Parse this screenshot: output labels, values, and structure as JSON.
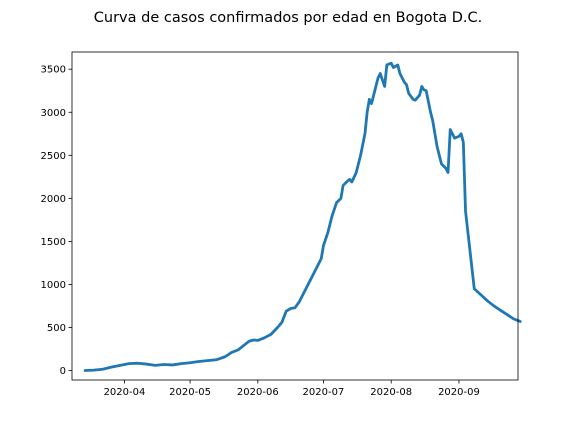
{
  "chart_data": {
    "type": "line",
    "title": "Curva de casos confirmados por edad en Bogota D.C.",
    "xlabel": "",
    "ylabel": "",
    "grid": false,
    "legend": "none",
    "x_axis": {
      "kind": "date",
      "range": [
        "2020-03-08",
        "2020-09-28"
      ],
      "ticks": [
        {
          "date": "2020-04-01",
          "label": "2020-04"
        },
        {
          "date": "2020-05-01",
          "label": "2020-05"
        },
        {
          "date": "2020-06-01",
          "label": "2020-06"
        },
        {
          "date": "2020-07-01",
          "label": "2020-07"
        },
        {
          "date": "2020-08-01",
          "label": "2020-08"
        },
        {
          "date": "2020-09-01",
          "label": "2020-09"
        }
      ]
    },
    "y_axis": {
      "range": [
        -110,
        3700
      ],
      "ticks": [
        0,
        500,
        1000,
        1500,
        2000,
        2500,
        3000,
        3500
      ]
    },
    "series": [
      {
        "color": "#1f77b4",
        "points": [
          [
            "2020-03-14",
            0
          ],
          [
            "2020-03-18",
            5
          ],
          [
            "2020-03-22",
            15
          ],
          [
            "2020-03-26",
            40
          ],
          [
            "2020-03-30",
            60
          ],
          [
            "2020-04-03",
            80
          ],
          [
            "2020-04-07",
            85
          ],
          [
            "2020-04-11",
            75
          ],
          [
            "2020-04-15",
            60
          ],
          [
            "2020-04-19",
            70
          ],
          [
            "2020-04-23",
            65
          ],
          [
            "2020-04-27",
            80
          ],
          [
            "2020-05-01",
            90
          ],
          [
            "2020-05-05",
            105
          ],
          [
            "2020-05-09",
            115
          ],
          [
            "2020-05-13",
            125
          ],
          [
            "2020-05-17",
            160
          ],
          [
            "2020-05-20",
            210
          ],
          [
            "2020-05-23",
            240
          ],
          [
            "2020-05-26",
            300
          ],
          [
            "2020-05-28",
            340
          ],
          [
            "2020-05-30",
            355
          ],
          [
            "2020-06-01",
            350
          ],
          [
            "2020-06-04",
            380
          ],
          [
            "2020-06-07",
            420
          ],
          [
            "2020-06-10",
            500
          ],
          [
            "2020-06-12",
            560
          ],
          [
            "2020-06-14",
            690
          ],
          [
            "2020-06-16",
            720
          ],
          [
            "2020-06-18",
            730
          ],
          [
            "2020-06-20",
            800
          ],
          [
            "2020-06-22",
            900
          ],
          [
            "2020-06-24",
            1000
          ],
          [
            "2020-06-26",
            1100
          ],
          [
            "2020-06-28",
            1200
          ],
          [
            "2020-06-30",
            1300
          ],
          [
            "2020-07-01",
            1450
          ],
          [
            "2020-07-03",
            1600
          ],
          [
            "2020-07-05",
            1800
          ],
          [
            "2020-07-07",
            1950
          ],
          [
            "2020-07-09",
            2000
          ],
          [
            "2020-07-10",
            2150
          ],
          [
            "2020-07-12",
            2200
          ],
          [
            "2020-07-13",
            2220
          ],
          [
            "2020-07-14",
            2190
          ],
          [
            "2020-07-16",
            2300
          ],
          [
            "2020-07-18",
            2500
          ],
          [
            "2020-07-20",
            2750
          ],
          [
            "2020-07-21",
            3000
          ],
          [
            "2020-07-22",
            3150
          ],
          [
            "2020-07-23",
            3100
          ],
          [
            "2020-07-25",
            3300
          ],
          [
            "2020-07-26",
            3400
          ],
          [
            "2020-07-27",
            3450
          ],
          [
            "2020-07-29",
            3300
          ],
          [
            "2020-07-30",
            3550
          ],
          [
            "2020-08-01",
            3570
          ],
          [
            "2020-08-02",
            3520
          ],
          [
            "2020-08-04",
            3550
          ],
          [
            "2020-08-05",
            3450
          ],
          [
            "2020-08-07",
            3350
          ],
          [
            "2020-08-08",
            3320
          ],
          [
            "2020-08-09",
            3220
          ],
          [
            "2020-08-11",
            3150
          ],
          [
            "2020-08-12",
            3140
          ],
          [
            "2020-08-14",
            3200
          ],
          [
            "2020-08-15",
            3300
          ],
          [
            "2020-08-16",
            3260
          ],
          [
            "2020-08-17",
            3250
          ],
          [
            "2020-08-19",
            3000
          ],
          [
            "2020-08-20",
            2900
          ],
          [
            "2020-08-22",
            2600
          ],
          [
            "2020-08-24",
            2400
          ],
          [
            "2020-08-26",
            2350
          ],
          [
            "2020-08-27",
            2300
          ],
          [
            "2020-08-28",
            2800
          ],
          [
            "2020-08-30",
            2700
          ],
          [
            "2020-09-01",
            2720
          ],
          [
            "2020-09-02",
            2750
          ],
          [
            "2020-09-03",
            2650
          ],
          [
            "2020-09-04",
            1850
          ],
          [
            "2020-09-06",
            1400
          ],
          [
            "2020-09-08",
            950
          ],
          [
            "2020-09-11",
            880
          ],
          [
            "2020-09-14",
            810
          ],
          [
            "2020-09-17",
            750
          ],
          [
            "2020-09-20",
            700
          ],
          [
            "2020-09-23",
            650
          ],
          [
            "2020-09-26",
            600
          ],
          [
            "2020-09-29",
            570
          ]
        ]
      }
    ]
  }
}
